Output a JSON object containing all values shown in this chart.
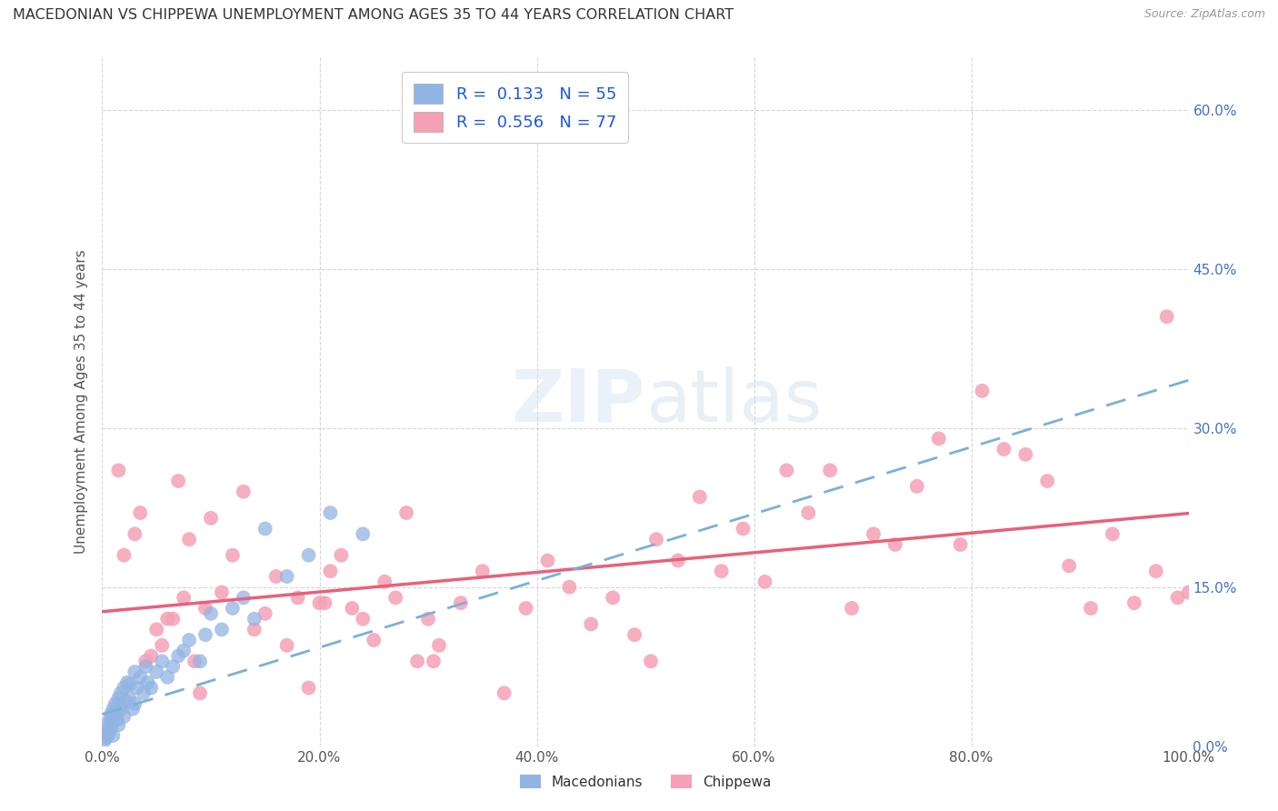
{
  "title": "MACEDONIAN VS CHIPPEWA UNEMPLOYMENT AMONG AGES 35 TO 44 YEARS CORRELATION CHART",
  "source": "Source: ZipAtlas.com",
  "ylabel": "Unemployment Among Ages 35 to 44 years",
  "x_tick_labels": [
    "0.0%",
    "20.0%",
    "40.0%",
    "60.0%",
    "80.0%",
    "100.0%"
  ],
  "x_tick_values": [
    0,
    20,
    40,
    60,
    80,
    100
  ],
  "y_tick_labels": [
    "0.0%",
    "15.0%",
    "30.0%",
    "45.0%",
    "60.0%"
  ],
  "y_tick_values": [
    0,
    15,
    30,
    45,
    60
  ],
  "xlim": [
    0,
    100
  ],
  "ylim": [
    0,
    65
  ],
  "legend_macedonian": "R =  0.133   N = 55",
  "legend_chippewa": "R =  0.556   N = 77",
  "macedonian_color": "#92b4e3",
  "chippewa_color": "#f5a0b5",
  "macedonian_line_color": "#7ab0d8",
  "chippewa_line_color": "#e8607a",
  "background_color": "#ffffff",
  "macedonian_x": [
    0.2,
    0.3,
    0.4,
    0.5,
    0.5,
    0.6,
    0.7,
    0.8,
    0.8,
    0.9,
    1.0,
    1.0,
    1.1,
    1.2,
    1.3,
    1.4,
    1.5,
    1.5,
    1.6,
    1.7,
    1.8,
    2.0,
    2.0,
    2.2,
    2.3,
    2.5,
    2.5,
    2.8,
    3.0,
    3.0,
    3.2,
    3.5,
    3.8,
    4.0,
    4.2,
    4.5,
    5.0,
    5.5,
    6.0,
    6.5,
    7.0,
    7.5,
    8.0,
    9.0,
    9.5,
    10.0,
    11.0,
    12.0,
    13.0,
    14.0,
    15.0,
    17.0,
    19.0,
    21.0,
    24.0
  ],
  "macedonian_y": [
    0.5,
    1.0,
    0.8,
    2.0,
    1.5,
    1.2,
    2.5,
    1.8,
    3.0,
    2.2,
    3.5,
    1.0,
    2.8,
    4.0,
    3.2,
    2.5,
    4.5,
    2.0,
    3.8,
    5.0,
    3.5,
    5.5,
    2.8,
    4.2,
    6.0,
    5.8,
    4.5,
    3.5,
    7.0,
    4.0,
    5.5,
    6.5,
    5.0,
    7.5,
    6.0,
    5.5,
    7.0,
    8.0,
    6.5,
    7.5,
    8.5,
    9.0,
    10.0,
    8.0,
    10.5,
    12.5,
    11.0,
    13.0,
    14.0,
    12.0,
    20.5,
    16.0,
    18.0,
    22.0,
    20.0
  ],
  "chippewa_x": [
    1.5,
    2.0,
    3.0,
    4.0,
    5.0,
    6.0,
    7.0,
    8.0,
    9.0,
    10.0,
    11.0,
    12.0,
    13.0,
    14.0,
    15.0,
    16.0,
    17.0,
    18.0,
    19.0,
    20.0,
    21.0,
    22.0,
    23.0,
    24.0,
    25.0,
    26.0,
    27.0,
    28.0,
    29.0,
    30.0,
    31.0,
    33.0,
    35.0,
    37.0,
    39.0,
    41.0,
    43.0,
    45.0,
    47.0,
    49.0,
    51.0,
    53.0,
    55.0,
    57.0,
    59.0,
    61.0,
    63.0,
    65.0,
    67.0,
    69.0,
    71.0,
    73.0,
    75.0,
    77.0,
    79.0,
    81.0,
    83.0,
    85.0,
    87.0,
    89.0,
    91.0,
    93.0,
    95.0,
    97.0,
    98.0,
    99.0,
    100.0,
    3.5,
    4.5,
    5.5,
    6.5,
    7.5,
    8.5,
    9.5,
    20.5,
    30.5,
    50.5
  ],
  "chippewa_y": [
    26.0,
    18.0,
    20.0,
    8.0,
    11.0,
    12.0,
    25.0,
    19.5,
    5.0,
    21.5,
    14.5,
    18.0,
    24.0,
    11.0,
    12.5,
    16.0,
    9.5,
    14.0,
    5.5,
    13.5,
    16.5,
    18.0,
    13.0,
    12.0,
    10.0,
    15.5,
    14.0,
    22.0,
    8.0,
    12.0,
    9.5,
    13.5,
    16.5,
    5.0,
    13.0,
    17.5,
    15.0,
    11.5,
    14.0,
    10.5,
    19.5,
    17.5,
    23.5,
    16.5,
    20.5,
    15.5,
    26.0,
    22.0,
    26.0,
    13.0,
    20.0,
    19.0,
    24.5,
    29.0,
    19.0,
    33.5,
    28.0,
    27.5,
    25.0,
    17.0,
    13.0,
    20.0,
    13.5,
    16.5,
    40.5,
    14.0,
    14.5,
    22.0,
    8.5,
    9.5,
    12.0,
    14.0,
    8.0,
    13.0,
    13.5,
    8.0,
    8.0
  ]
}
